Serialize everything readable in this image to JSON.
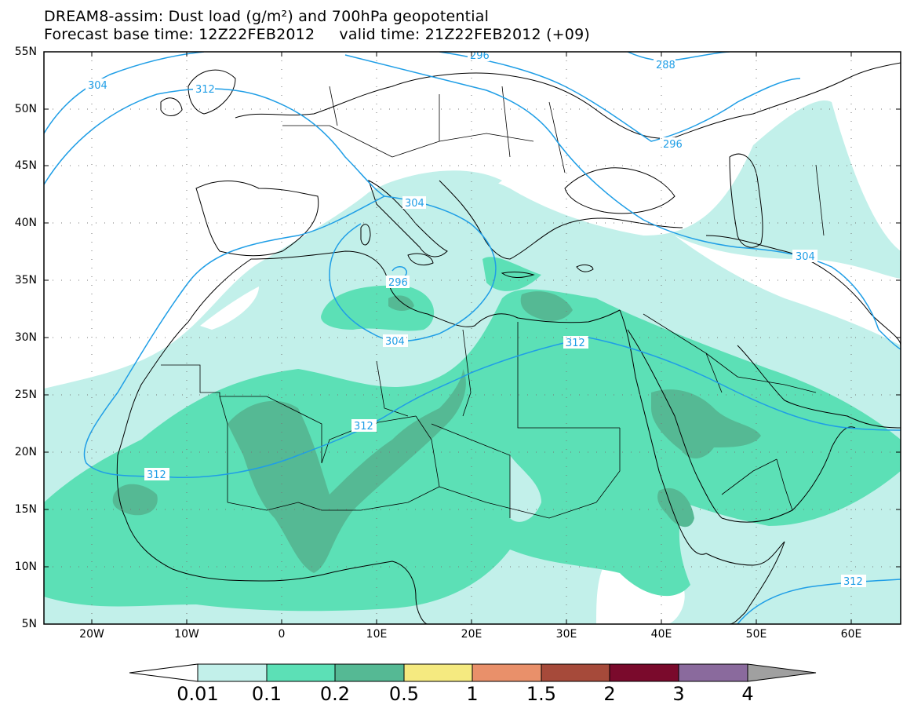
{
  "title": {
    "line1": "DREAM8-assim: Dust load (g/m²) and 700hPa geopotential",
    "line2": "Forecast base time: 12Z22FEB2012     valid time: 21Z22FEB2012 (+09)"
  },
  "axes": {
    "lat_labels": [
      "55N",
      "50N",
      "45N",
      "40N",
      "35N",
      "30N",
      "25N",
      "20N",
      "15N",
      "10N",
      "5N"
    ],
    "lon_labels": [
      "20W",
      "10W",
      "0",
      "10E",
      "20E",
      "30E",
      "40E",
      "50E",
      "60E"
    ]
  },
  "colorbar": {
    "labels": [
      "0.01",
      "0.1",
      "0.2",
      "0.5",
      "1",
      "1.5",
      "2",
      "3",
      "4"
    ],
    "colors": [
      "#c2f0ea",
      "#5ce0b6",
      "#55b994",
      "#f5ea80",
      "#e9906a",
      "#a64a3a",
      "#7a0a2c",
      "#8a6a9d",
      "#a0a0a0"
    ]
  },
  "contour_labels": [
    "304",
    "312",
    "296",
    "288",
    "296",
    "304",
    "296",
    "304",
    "304",
    "312",
    "312",
    "312",
    "312"
  ],
  "colors": {
    "contour": "#1f9ee6",
    "border": "#000000",
    "dust_low": "#c2f0ea",
    "dust_mid": "#5ce0b6",
    "dust_high": "#55b994"
  }
}
